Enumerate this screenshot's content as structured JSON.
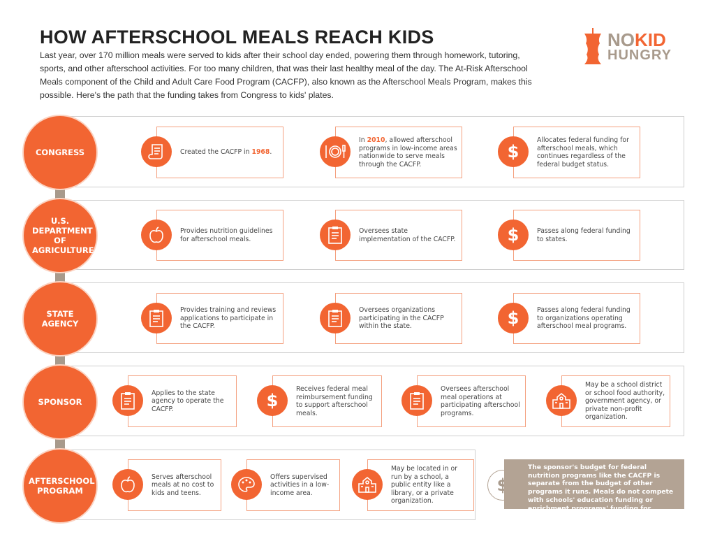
{
  "header": {
    "title": "HOW AFTERSCHOOL MEALS REACH KIDS",
    "intro": "Last year, over 170 million meals were served to kids after their school day ended, powering them through homework, tutoring, sports, and other afterschool activities. For too many children, that was their last healthy meal of the day. The At-Risk Afterschool Meals component of the Child and Adult Care Food Program (CACFP), also known as the Afterschool Meals Program, makes this possible. Here's the path that the funding takes from Congress to kids' plates."
  },
  "logo": {
    "line1a": "NO",
    "line1b": "KID",
    "line2": "HUNGRY"
  },
  "colors": {
    "accent": "#f26532",
    "arrow": "#a89a8c",
    "note_bg": "#b3a394",
    "card_border": "#f4a07f"
  },
  "stages": [
    {
      "label": "CONGRESS",
      "cards": [
        {
          "icon": "scroll-icon",
          "pre": "Created the CACFP in ",
          "hl": "1968",
          "post": "."
        },
        {
          "icon": "plate-utensils-icon",
          "pre": "In ",
          "hl": "2010",
          "post": ", allowed afterschool programs in low-income areas nationwide to serve meals through the CACFP."
        },
        {
          "icon": "dollar-icon",
          "pre": "Allocates federal funding for afterschool meals, which continues regardless of the federal budget status.",
          "hl": "",
          "post": ""
        }
      ]
    },
    {
      "label": "U.S. DEPARTMENT OF AGRICULTURE",
      "cards": [
        {
          "icon": "apple-icon",
          "pre": "Provides nutrition guidelines for afterschool meals.",
          "hl": "",
          "post": ""
        },
        {
          "icon": "clipboard-icon",
          "pre": "Oversees state implementation of the CACFP.",
          "hl": "",
          "post": ""
        },
        {
          "icon": "dollar-icon",
          "pre": "Passes along federal funding to states.",
          "hl": "",
          "post": ""
        }
      ]
    },
    {
      "label": "STATE AGENCY",
      "cards": [
        {
          "icon": "clipboard-icon",
          "pre": "Provides training and reviews applications to participate in the CACFP.",
          "hl": "",
          "post": ""
        },
        {
          "icon": "clipboard-icon",
          "pre": "Oversees organizations participating in the CACFP within the state.",
          "hl": "",
          "post": ""
        },
        {
          "icon": "dollar-icon",
          "pre": "Passes along federal funding to organizations operating afterschool meal programs.",
          "hl": "",
          "post": ""
        }
      ]
    },
    {
      "label": "SPONSOR",
      "cards": [
        {
          "icon": "clipboard-icon",
          "pre": "Applies to the state agency to operate the CACFP.",
          "hl": "",
          "post": ""
        },
        {
          "icon": "dollar-icon",
          "pre": "Receives federal meal reimbursement funding to support afterschool meals.",
          "hl": "",
          "post": ""
        },
        {
          "icon": "clipboard-icon",
          "pre": "Oversees afterschool meal operations at participating afterschool programs.",
          "hl": "",
          "post": ""
        },
        {
          "icon": "school-building-icon",
          "pre": "May be a school district or school food authority, government agency, or private non-profit organization.",
          "hl": "",
          "post": ""
        }
      ]
    },
    {
      "label": "AFTERSCHOOL PROGRAM",
      "cards": [
        {
          "icon": "apple-icon",
          "pre": "Serves afterschool meals at no cost to kids and teens.",
          "hl": "",
          "post": ""
        },
        {
          "icon": "palette-icon",
          "pre": "Offers supervised activities in a low-income area.",
          "hl": "",
          "post": ""
        },
        {
          "icon": "school-building-icon",
          "pre": "May be located in or run by a school, a public entity like a library, or a private organization.",
          "hl": "",
          "post": ""
        }
      ]
    }
  ],
  "note": {
    "icon": "dollar-icon",
    "text": "The sponsor's budget for federal nutrition programs like the CACFP is separate from the budget of other programs it runs. Meals do not compete with schools' education funding or enrichment programs' funding for activities."
  }
}
